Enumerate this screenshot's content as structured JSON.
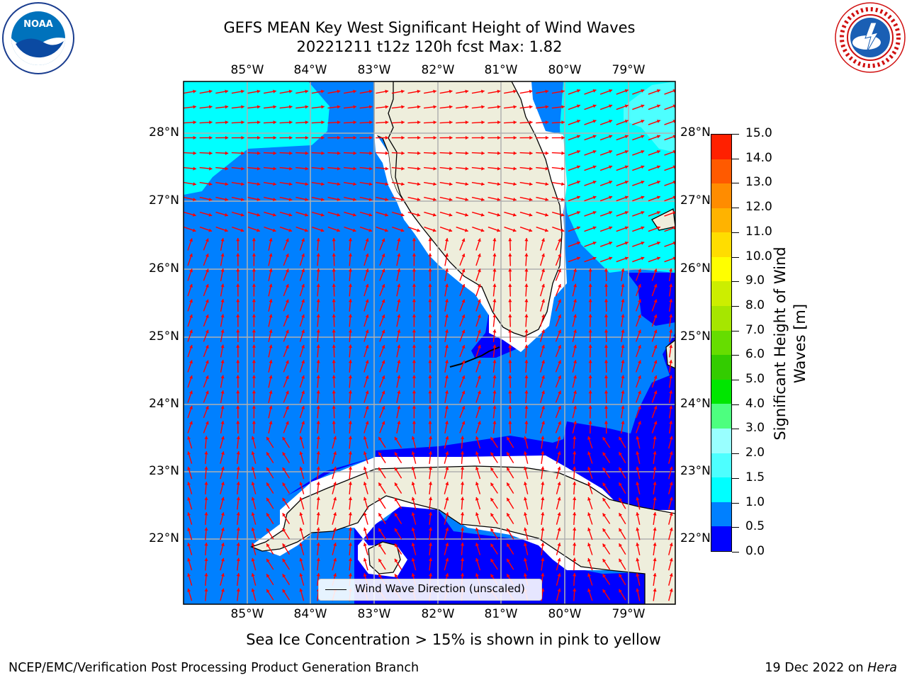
{
  "title_line1": "GEFS MEAN Key West Significant Height of Wind Waves",
  "title_line2": "20221211 t12z 120h fcst   Max: 1.82",
  "logos": {
    "left": "noaa-logo",
    "right": "national-weather-service-logo"
  },
  "map": {
    "lon_labels": [
      "85°W",
      "84°W",
      "83°W",
      "82°W",
      "81°W",
      "80°W",
      "79°W"
    ],
    "lat_labels": [
      "28°N",
      "27°N",
      "26°N",
      "25°N",
      "24°N",
      "23°N",
      "22°N"
    ],
    "legend": "Wind Wave Direction (unscaled)",
    "arrow_color": "#ff0000",
    "land_color": "#eeeedc",
    "gridline_color": "#b0b0b0"
  },
  "colorbar": {
    "label": "Significant Height of Wind Waves [m]",
    "ticks": [
      "0.0",
      "0.5",
      "1.0",
      "1.5",
      "2.0",
      "3.0",
      "4.0",
      "5.0",
      "6.0",
      "7.0",
      "8.0",
      "9.0",
      "10.0",
      "11.0",
      "12.0",
      "13.0",
      "14.0",
      "15.0"
    ],
    "colors": [
      "#0000ff",
      "#0080ff",
      "#00ffff",
      "#4dffff",
      "#99ffff",
      "#4dff7f",
      "#00e600",
      "#33cc00",
      "#66dd00",
      "#a6e600",
      "#ccee00",
      "#ffff00",
      "#ffdd00",
      "#ffb300",
      "#ff8c00",
      "#ff5a00",
      "#ff2000"
    ]
  },
  "sea_ice_note": "Sea Ice Concentration > 15% is shown in pink to yellow",
  "footer_left": "NCEP/EMC/Verification Post Processing Product Generation Branch",
  "footer_right_date": "19 Dec 2022 on ",
  "footer_right_host": "Hera"
}
